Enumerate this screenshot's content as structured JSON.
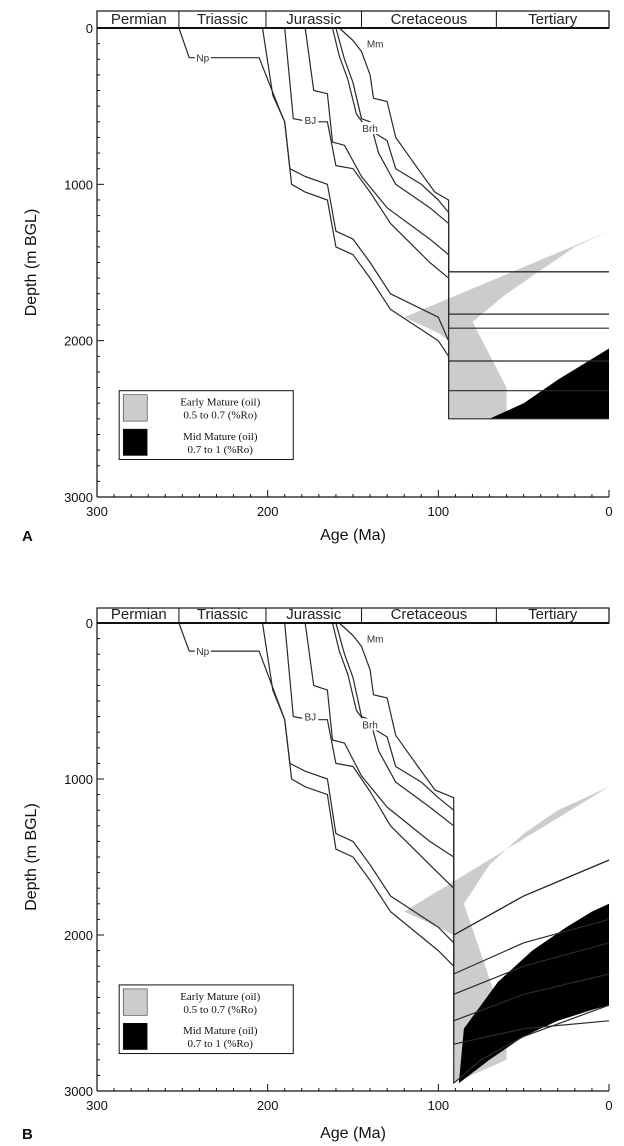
{
  "chart_data": [
    {
      "type": "area",
      "panel_label": "A",
      "xlabel": "Age (Ma)",
      "ylabel": "Depth (m BGL)",
      "xlim": [
        300,
        0
      ],
      "ylim": [
        0,
        3000
      ],
      "x_ticks": [
        300,
        200,
        100,
        0
      ],
      "y_ticks": [
        0,
        1000,
        2000,
        3000
      ],
      "periods": [
        {
          "name": "Permian",
          "start": 299,
          "end": 252
        },
        {
          "name": "Triassic",
          "start": 252,
          "end": 201
        },
        {
          "name": "Jurassic",
          "start": 201,
          "end": 145
        },
        {
          "name": "Cretaceous",
          "start": 145,
          "end": 66
        },
        {
          "name": "Tertiary",
          "start": 66,
          "end": 0
        }
      ],
      "legend": [
        {
          "name": "Early Mature (oil)",
          "detail": "0.5 to 0.7 (%Ro)",
          "color": "#cccccc"
        },
        {
          "name": "Mid Mature (oil)",
          "detail": "0.7 to 1 (%Ro)",
          "color": "#000000"
        }
      ],
      "early_mature_zone": [
        [
          120,
          1850
        ],
        [
          110,
          1900
        ],
        [
          100,
          1950
        ],
        [
          94,
          2000
        ],
        [
          94,
          2500
        ],
        [
          60,
          2500
        ],
        [
          60,
          2300
        ],
        [
          80,
          1880
        ],
        [
          60,
          1700
        ],
        [
          40,
          1550
        ],
        [
          20,
          1400
        ],
        [
          0,
          1300
        ],
        [
          0,
          1300
        ]
      ],
      "mid_mature_zone": [
        [
          70,
          2500
        ],
        [
          50,
          2400
        ],
        [
          30,
          2250
        ],
        [
          15,
          2150
        ],
        [
          0,
          2050
        ],
        [
          0,
          2500
        ]
      ],
      "horizons": [
        {
          "name": "Np",
          "label_age": 238,
          "label_depth": 190,
          "points": [
            [
              252,
              0
            ],
            [
              246,
              190
            ],
            [
              205,
              190
            ],
            [
              192,
              550
            ],
            [
              190,
              600
            ],
            [
              186,
              1000
            ],
            [
              178,
              1050
            ],
            [
              165,
              1100
            ],
            [
              160,
              1400
            ],
            [
              150,
              1450
            ],
            [
              140,
              1600
            ],
            [
              128,
              1800
            ],
            [
              100,
              2000
            ],
            [
              94,
              2100
            ],
            [
              94,
              2500
            ],
            [
              0,
              2500
            ]
          ]
        },
        {
          "name": "",
          "points": [
            [
              203,
              0
            ],
            [
              197,
              430
            ],
            [
              190,
              600
            ],
            [
              187,
              900
            ],
            [
              178,
              950
            ],
            [
              165,
              1000
            ],
            [
              160,
              1300
            ],
            [
              150,
              1350
            ],
            [
              140,
              1500
            ],
            [
              128,
              1700
            ],
            [
              100,
              1850
            ],
            [
              94,
              2000
            ],
            [
              94,
              2320
            ],
            [
              0,
              2320
            ]
          ]
        },
        {
          "name": "BJ",
          "label_age": 175,
          "label_depth": 590,
          "points": [
            [
              190,
              0
            ],
            [
              185,
              580
            ],
            [
              175,
              600
            ],
            [
              165,
              600
            ],
            [
              160,
              880
            ],
            [
              150,
              900
            ],
            [
              140,
              1050
            ],
            [
              128,
              1250
            ],
            [
              105,
              1500
            ],
            [
              94,
              1600
            ],
            [
              94,
              2130
            ],
            [
              0,
              2130
            ]
          ]
        },
        {
          "name": "",
          "points": [
            [
              178,
              0
            ],
            [
              173,
              400
            ],
            [
              165,
              420
            ],
            [
              162,
              730
            ],
            [
              155,
              750
            ],
            [
              145,
              950
            ],
            [
              130,
              1150
            ],
            [
              105,
              1350
            ],
            [
              94,
              1450
            ],
            [
              94,
              1920
            ],
            [
              0,
              1920
            ]
          ]
        },
        {
          "name": "",
          "points": [
            [
              160,
              0
            ],
            [
              155,
              200
            ],
            [
              150,
              350
            ],
            [
              145,
              580
            ],
            [
              140,
              600
            ],
            [
              135,
              800
            ],
            [
              125,
              1000
            ],
            [
              105,
              1150
            ],
            [
              94,
              1250
            ],
            [
              94,
              1830
            ],
            [
              0,
              1830
            ]
          ]
        },
        {
          "name": "Brh",
          "label_age": 140,
          "label_depth": 640,
          "points": [
            [
              162,
              0
            ],
            [
              158,
              180
            ],
            [
              153,
              330
            ],
            [
              148,
              550
            ],
            [
              142,
              640
            ],
            [
              130,
              720
            ],
            [
              125,
              900
            ],
            [
              110,
              1000
            ],
            [
              100,
              1100
            ],
            [
              94,
              1180
            ],
            [
              94,
              1560
            ],
            [
              0,
              1560
            ]
          ]
        },
        {
          "name": "Mm",
          "label_age": 137,
          "label_depth": 100,
          "points": [
            [
              158,
              0
            ],
            [
              150,
              80
            ],
            [
              145,
              150
            ],
            [
              140,
              300
            ],
            [
              138,
              450
            ],
            [
              130,
              470
            ],
            [
              125,
              700
            ],
            [
              112,
              900
            ],
            [
              102,
              1050
            ],
            [
              94,
              1100
            ],
            [
              94,
              1560
            ],
            [
              0,
              1560
            ]
          ]
        }
      ]
    },
    {
      "type": "area",
      "panel_label": "B",
      "xlabel": "Age (Ma)",
      "ylabel": "Depth (m BGL)",
      "xlim": [
        300,
        0
      ],
      "ylim": [
        0,
        3000
      ],
      "x_ticks": [
        300,
        200,
        100,
        0
      ],
      "y_ticks": [
        0,
        1000,
        2000,
        3000
      ],
      "periods": [
        {
          "name": "Permian",
          "start": 299,
          "end": 252
        },
        {
          "name": "Triassic",
          "start": 252,
          "end": 201
        },
        {
          "name": "Jurassic",
          "start": 201,
          "end": 145
        },
        {
          "name": "Cretaceous",
          "start": 145,
          "end": 66
        },
        {
          "name": "Tertiary",
          "start": 66,
          "end": 0
        }
      ],
      "legend": [
        {
          "name": "Early Mature (oil)",
          "detail": "0.5 to 0.7 (%Ro)",
          "color": "#cccccc"
        },
        {
          "name": "Mid Mature (oil)",
          "detail": "0.7 to 1 (%Ro)",
          "color": "#000000"
        }
      ],
      "early_mature_zone": [
        [
          120,
          1850
        ],
        [
          110,
          1900
        ],
        [
          100,
          1950
        ],
        [
          91,
          2000
        ],
        [
          91,
          2950
        ],
        [
          60,
          2800
        ],
        [
          60,
          2600
        ],
        [
          85,
          1800
        ],
        [
          70,
          1550
        ],
        [
          50,
          1350
        ],
        [
          30,
          1200
        ],
        [
          10,
          1100
        ],
        [
          0,
          1050
        ],
        [
          0,
          1050
        ]
      ],
      "mid_mature_zone": [
        [
          88,
          2950
        ],
        [
          70,
          2800
        ],
        [
          50,
          2650
        ],
        [
          30,
          2550
        ],
        [
          10,
          2480
        ],
        [
          0,
          2450
        ],
        [
          0,
          1800
        ],
        [
          10,
          1850
        ],
        [
          25,
          1950
        ],
        [
          45,
          2100
        ],
        [
          65,
          2300
        ],
        [
          85,
          2600
        ]
      ],
      "horizons": [
        {
          "name": "Np",
          "label_age": 238,
          "label_depth": 180,
          "points": [
            [
              252,
              0
            ],
            [
              246,
              180
            ],
            [
              205,
              180
            ],
            [
              192,
              560
            ],
            [
              190,
              620
            ],
            [
              186,
              1000
            ],
            [
              178,
              1050
            ],
            [
              165,
              1100
            ],
            [
              160,
              1450
            ],
            [
              150,
              1500
            ],
            [
              140,
              1650
            ],
            [
              128,
              1850
            ],
            [
              100,
              2100
            ],
            [
              91,
              2200
            ],
            [
              91,
              2950
            ],
            [
              75,
              2800
            ],
            [
              50,
              2650
            ],
            [
              25,
              2550
            ],
            [
              0,
              2450
            ]
          ]
        },
        {
          "name": "",
          "points": [
            [
              203,
              0
            ],
            [
              197,
              430
            ],
            [
              190,
              620
            ],
            [
              187,
              900
            ],
            [
              178,
              950
            ],
            [
              165,
              1000
            ],
            [
              160,
              1350
            ],
            [
              150,
              1400
            ],
            [
              140,
              1550
            ],
            [
              128,
              1750
            ],
            [
              100,
              1950
            ],
            [
              91,
              2050
            ],
            [
              91,
              2700
            ],
            [
              50,
              2600
            ],
            [
              0,
              2550
            ]
          ]
        },
        {
          "name": "BJ",
          "label_age": 175,
          "label_depth": 600,
          "points": [
            [
              190,
              0
            ],
            [
              185,
              600
            ],
            [
              175,
              620
            ],
            [
              165,
              620
            ],
            [
              160,
              900
            ],
            [
              150,
              920
            ],
            [
              140,
              1080
            ],
            [
              128,
              1300
            ],
            [
              105,
              1550
            ],
            [
              91,
              1700
            ],
            [
              91,
              2550
            ],
            [
              50,
              2380
            ],
            [
              0,
              2250
            ]
          ]
        },
        {
          "name": "",
          "points": [
            [
              178,
              0
            ],
            [
              173,
              400
            ],
            [
              165,
              430
            ],
            [
              162,
              750
            ],
            [
              155,
              770
            ],
            [
              145,
              980
            ],
            [
              130,
              1180
            ],
            [
              105,
              1400
            ],
            [
              91,
              1500
            ],
            [
              91,
              2380
            ],
            [
              50,
              2200
            ],
            [
              0,
              2050
            ]
          ]
        },
        {
          "name": "",
          "points": [
            [
              160,
              0
            ],
            [
              155,
              200
            ],
            [
              150,
              350
            ],
            [
              145,
              600
            ],
            [
              140,
              620
            ],
            [
              135,
              820
            ],
            [
              125,
              1020
            ],
            [
              105,
              1180
            ],
            [
              91,
              1300
            ],
            [
              91,
              2250
            ],
            [
              50,
              2050
            ],
            [
              0,
              1900
            ]
          ]
        },
        {
          "name": "Brh",
          "label_age": 140,
          "label_depth": 650,
          "points": [
            [
              162,
              0
            ],
            [
              158,
              180
            ],
            [
              153,
              330
            ],
            [
              148,
              560
            ],
            [
              142,
              650
            ],
            [
              130,
              730
            ],
            [
              125,
              920
            ],
            [
              110,
              1020
            ],
            [
              100,
              1120
            ],
            [
              91,
              1200
            ],
            [
              91,
              2000
            ],
            [
              50,
              1750
            ],
            [
              0,
              1520
            ]
          ]
        },
        {
          "name": "Mm",
          "label_age": 137,
          "label_depth": 100,
          "points": [
            [
              158,
              0
            ],
            [
              150,
              80
            ],
            [
              145,
              150
            ],
            [
              140,
              300
            ],
            [
              138,
              460
            ],
            [
              130,
              480
            ],
            [
              125,
              720
            ],
            [
              112,
              920
            ],
            [
              102,
              1070
            ],
            [
              91,
              1120
            ],
            [
              91,
              2000
            ],
            [
              50,
              1750
            ],
            [
              0,
              1520
            ]
          ]
        }
      ]
    }
  ]
}
